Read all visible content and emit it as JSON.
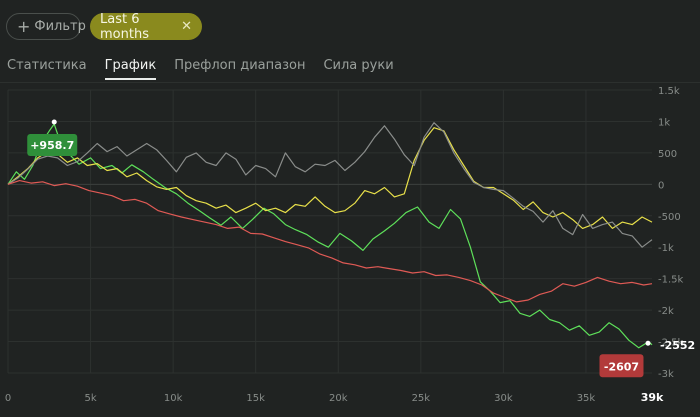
{
  "filters": {
    "filter_label": "Фильтр",
    "filter_icon": "plus-icon",
    "period_label": "Last 6 months",
    "period_close_icon": "close-icon"
  },
  "tabs": [
    {
      "label": "Статистика",
      "active": false
    },
    {
      "label": "График",
      "active": true
    },
    {
      "label": "Префлоп диапазон",
      "active": false
    },
    {
      "label": "Сила руки",
      "active": false
    }
  ],
  "colors": {
    "green": "#5ee05a",
    "yellow": "#e8e04a",
    "gray": "#8a8d8b",
    "red": "#e05a55",
    "max_badge": "#2f8f3a",
    "min_badge": "#b23a3a"
  },
  "chart_data": {
    "type": "line",
    "xlim": [
      0,
      39000
    ],
    "ylim": [
      -3000,
      1500
    ],
    "x_ticks": [
      "0",
      "5k",
      "10k",
      "15k",
      "20k",
      "25k",
      "30k",
      "35k",
      "39k"
    ],
    "y_ticks": [
      "1.5k",
      "1k",
      "500",
      "0",
      "-500",
      "-1k",
      "-1.5k",
      "-2k",
      "-2.5k",
      "-3k"
    ],
    "grid": true,
    "max_badge": {
      "label": "+958.7",
      "x": 2800,
      "y": 958.7
    },
    "min_badge": {
      "label": "-2607",
      "x": 38000,
      "y": -2607
    },
    "end_label": "-2552",
    "series": [
      {
        "color": "green",
        "points": [
          [
            0,
            0
          ],
          [
            500,
            200
          ],
          [
            1000,
            80
          ],
          [
            1500,
            300
          ],
          [
            2000,
            650
          ],
          [
            2500,
            850
          ],
          [
            2800,
            958.7
          ],
          [
            3200,
            650
          ],
          [
            3700,
            480
          ],
          [
            4300,
            320
          ],
          [
            5000,
            420
          ],
          [
            5600,
            250
          ],
          [
            6300,
            300
          ],
          [
            6900,
            180
          ],
          [
            7500,
            310
          ],
          [
            8200,
            200
          ],
          [
            8800,
            80
          ],
          [
            9500,
            -50
          ],
          [
            10200,
            -150
          ],
          [
            10900,
            -300
          ],
          [
            11600,
            -420
          ],
          [
            12200,
            -530
          ],
          [
            12900,
            -650
          ],
          [
            13500,
            -520
          ],
          [
            14200,
            -700
          ],
          [
            14800,
            -560
          ],
          [
            15500,
            -380
          ],
          [
            16100,
            -470
          ],
          [
            16800,
            -640
          ],
          [
            17400,
            -720
          ],
          [
            18100,
            -800
          ],
          [
            18800,
            -920
          ],
          [
            19400,
            -1000
          ],
          [
            20100,
            -780
          ],
          [
            20800,
            -900
          ],
          [
            21500,
            -1050
          ],
          [
            22100,
            -870
          ],
          [
            22800,
            -740
          ],
          [
            23400,
            -620
          ],
          [
            24100,
            -450
          ],
          [
            24800,
            -360
          ],
          [
            25500,
            -600
          ],
          [
            26100,
            -700
          ],
          [
            26800,
            -400
          ],
          [
            27400,
            -550
          ],
          [
            28000,
            -1000
          ],
          [
            28600,
            -1550
          ],
          [
            29200,
            -1700
          ],
          [
            29800,
            -1880
          ],
          [
            30400,
            -1850
          ],
          [
            31000,
            -2050
          ],
          [
            31600,
            -2100
          ],
          [
            32200,
            -2000
          ],
          [
            32800,
            -2150
          ],
          [
            33400,
            -2200
          ],
          [
            34000,
            -2320
          ],
          [
            34600,
            -2250
          ],
          [
            35200,
            -2400
          ],
          [
            35800,
            -2350
          ],
          [
            36400,
            -2200
          ],
          [
            37000,
            -2300
          ],
          [
            37600,
            -2480
          ],
          [
            38200,
            -2600
          ],
          [
            38800,
            -2500
          ],
          [
            39000,
            -2552
          ]
        ]
      },
      {
        "color": "yellow",
        "points": [
          [
            0,
            0
          ],
          [
            600,
            120
          ],
          [
            1200,
            250
          ],
          [
            1800,
            420
          ],
          [
            2400,
            520
          ],
          [
            3000,
            480
          ],
          [
            3600,
            350
          ],
          [
            4200,
            420
          ],
          [
            4800,
            300
          ],
          [
            5400,
            330
          ],
          [
            6000,
            220
          ],
          [
            6600,
            250
          ],
          [
            7200,
            120
          ],
          [
            7800,
            180
          ],
          [
            8400,
            60
          ],
          [
            9000,
            -40
          ],
          [
            9600,
            -80
          ],
          [
            10200,
            -50
          ],
          [
            10800,
            -180
          ],
          [
            11400,
            -260
          ],
          [
            12000,
            -300
          ],
          [
            12600,
            -380
          ],
          [
            13200,
            -330
          ],
          [
            13800,
            -450
          ],
          [
            14400,
            -380
          ],
          [
            15000,
            -300
          ],
          [
            15600,
            -420
          ],
          [
            16200,
            -380
          ],
          [
            16800,
            -450
          ],
          [
            17400,
            -320
          ],
          [
            18000,
            -350
          ],
          [
            18600,
            -200
          ],
          [
            19200,
            -350
          ],
          [
            19800,
            -450
          ],
          [
            20400,
            -420
          ],
          [
            21000,
            -300
          ],
          [
            21600,
            -100
          ],
          [
            22200,
            -150
          ],
          [
            22800,
            -50
          ],
          [
            23400,
            -200
          ],
          [
            24000,
            -150
          ],
          [
            24600,
            380
          ],
          [
            25200,
            700
          ],
          [
            25800,
            900
          ],
          [
            26400,
            850
          ],
          [
            27000,
            550
          ],
          [
            27600,
            300
          ],
          [
            28200,
            50
          ],
          [
            28800,
            -50
          ],
          [
            29400,
            -50
          ],
          [
            30000,
            -150
          ],
          [
            30600,
            -250
          ],
          [
            31200,
            -400
          ],
          [
            31800,
            -280
          ],
          [
            32400,
            -450
          ],
          [
            33000,
            -520
          ],
          [
            33600,
            -450
          ],
          [
            34200,
            -560
          ],
          [
            34800,
            -700
          ],
          [
            35400,
            -640
          ],
          [
            36000,
            -520
          ],
          [
            36600,
            -700
          ],
          [
            37200,
            -600
          ],
          [
            37800,
            -640
          ],
          [
            38400,
            -520
          ],
          [
            39000,
            -600
          ]
        ]
      },
      {
        "color": "gray",
        "points": [
          [
            0,
            0
          ],
          [
            600,
            100
          ],
          [
            1200,
            240
          ],
          [
            1800,
            400
          ],
          [
            2400,
            450
          ],
          [
            3000,
            420
          ],
          [
            3600,
            300
          ],
          [
            4200,
            360
          ],
          [
            4800,
            500
          ],
          [
            5400,
            650
          ],
          [
            6000,
            520
          ],
          [
            6600,
            600
          ],
          [
            7200,
            450
          ],
          [
            7800,
            550
          ],
          [
            8400,
            650
          ],
          [
            9000,
            550
          ],
          [
            9600,
            380
          ],
          [
            10200,
            200
          ],
          [
            10800,
            430
          ],
          [
            11400,
            500
          ],
          [
            12000,
            350
          ],
          [
            12600,
            300
          ],
          [
            13200,
            500
          ],
          [
            13800,
            400
          ],
          [
            14400,
            150
          ],
          [
            15000,
            300
          ],
          [
            15600,
            250
          ],
          [
            16200,
            120
          ],
          [
            16800,
            500
          ],
          [
            17400,
            280
          ],
          [
            18000,
            200
          ],
          [
            18600,
            320
          ],
          [
            19200,
            300
          ],
          [
            19800,
            380
          ],
          [
            20400,
            220
          ],
          [
            21000,
            350
          ],
          [
            21600,
            520
          ],
          [
            22200,
            750
          ],
          [
            22800,
            930
          ],
          [
            23400,
            720
          ],
          [
            24000,
            470
          ],
          [
            24600,
            300
          ],
          [
            25200,
            750
          ],
          [
            25800,
            980
          ],
          [
            26400,
            830
          ],
          [
            27000,
            500
          ],
          [
            27600,
            250
          ],
          [
            28200,
            30
          ],
          [
            28800,
            -50
          ],
          [
            29400,
            -80
          ],
          [
            30000,
            -100
          ],
          [
            30600,
            -220
          ],
          [
            31200,
            -350
          ],
          [
            31800,
            -430
          ],
          [
            32400,
            -600
          ],
          [
            33000,
            -420
          ],
          [
            33600,
            -700
          ],
          [
            34200,
            -800
          ],
          [
            34800,
            -480
          ],
          [
            35400,
            -700
          ],
          [
            36000,
            -640
          ],
          [
            36600,
            -600
          ],
          [
            37200,
            -780
          ],
          [
            37800,
            -820
          ],
          [
            38400,
            -1000
          ],
          [
            39000,
            -880
          ]
        ]
      },
      {
        "color": "red",
        "points": [
          [
            0,
            0
          ],
          [
            700,
            60
          ],
          [
            1400,
            20
          ],
          [
            2100,
            40
          ],
          [
            2800,
            -20
          ],
          [
            3500,
            10
          ],
          [
            4200,
            -30
          ],
          [
            4900,
            -100
          ],
          [
            5600,
            -140
          ],
          [
            6300,
            -180
          ],
          [
            7000,
            -260
          ],
          [
            7700,
            -240
          ],
          [
            8400,
            -300
          ],
          [
            9100,
            -420
          ],
          [
            9800,
            -470
          ],
          [
            10500,
            -520
          ],
          [
            11200,
            -560
          ],
          [
            11900,
            -600
          ],
          [
            12600,
            -640
          ],
          [
            13300,
            -700
          ],
          [
            14000,
            -680
          ],
          [
            14700,
            -780
          ],
          [
            15400,
            -790
          ],
          [
            16100,
            -850
          ],
          [
            16800,
            -910
          ],
          [
            17500,
            -960
          ],
          [
            18200,
            -1010
          ],
          [
            18900,
            -1110
          ],
          [
            19600,
            -1170
          ],
          [
            20300,
            -1250
          ],
          [
            21000,
            -1280
          ],
          [
            21700,
            -1330
          ],
          [
            22400,
            -1310
          ],
          [
            23100,
            -1340
          ],
          [
            23800,
            -1370
          ],
          [
            24500,
            -1410
          ],
          [
            25200,
            -1390
          ],
          [
            25900,
            -1450
          ],
          [
            26600,
            -1440
          ],
          [
            27300,
            -1480
          ],
          [
            28000,
            -1530
          ],
          [
            28700,
            -1600
          ],
          [
            29400,
            -1730
          ],
          [
            30100,
            -1800
          ],
          [
            30800,
            -1870
          ],
          [
            31500,
            -1840
          ],
          [
            32200,
            -1750
          ],
          [
            32900,
            -1700
          ],
          [
            33600,
            -1580
          ],
          [
            34300,
            -1620
          ],
          [
            35000,
            -1560
          ],
          [
            35700,
            -1480
          ],
          [
            36400,
            -1540
          ],
          [
            37100,
            -1580
          ],
          [
            37800,
            -1560
          ],
          [
            38500,
            -1600
          ],
          [
            39000,
            -1580
          ]
        ]
      }
    ]
  }
}
